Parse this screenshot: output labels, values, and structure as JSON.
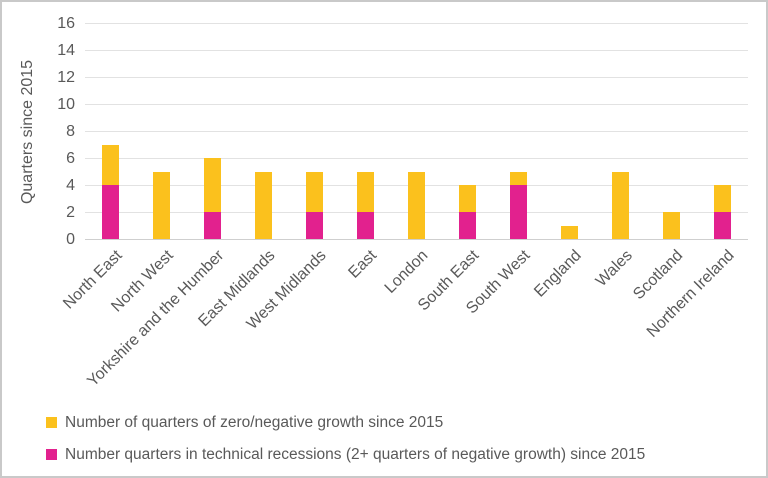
{
  "chart_data": {
    "type": "bar",
    "subtype": "stacked-vertical",
    "title": "",
    "xlabel": "",
    "ylabel": "Quarters since 2015",
    "ylim": [
      0,
      16
    ],
    "yticks": [
      0,
      2,
      4,
      6,
      8,
      10,
      12,
      14,
      16
    ],
    "grid": "horizontal",
    "legend_position": "bottom-left",
    "categories": [
      "North East",
      "North West",
      "Yorkshire and the Humber",
      "East Midlands",
      "West Midlands",
      "East",
      "London",
      "South East",
      "South West",
      "England",
      "Wales",
      "Scotland",
      "Northern Ireland"
    ],
    "series": [
      {
        "name": "Number of quarters of zero/negative growth since 2015",
        "color": "#FBC11D",
        "stack_position": "top",
        "segment_values": [
          3,
          5,
          4,
          5,
          3,
          3,
          5,
          2,
          1,
          1,
          5,
          2,
          2
        ]
      },
      {
        "name": "Number quarters in technical recessions (2+ quarters of negative growth) since 2015",
        "color": "#E2218E",
        "stack_position": "bottom",
        "segment_values": [
          4,
          0,
          2,
          0,
          2,
          2,
          0,
          2,
          4,
          0,
          0,
          0,
          2
        ]
      }
    ],
    "bar_totals": [
      7,
      5,
      6,
      5,
      5,
      5,
      5,
      4,
      5,
      1,
      5,
      2,
      4
    ]
  },
  "colors": {
    "text": "#595959",
    "gridline": "#e2e2e2",
    "axis_line": "#cfcfcf",
    "zero_negative_growth": "#FBC11D",
    "technical_recession": "#E2218E",
    "frame_border": "#c9c9c9",
    "background": "#ffffff"
  }
}
